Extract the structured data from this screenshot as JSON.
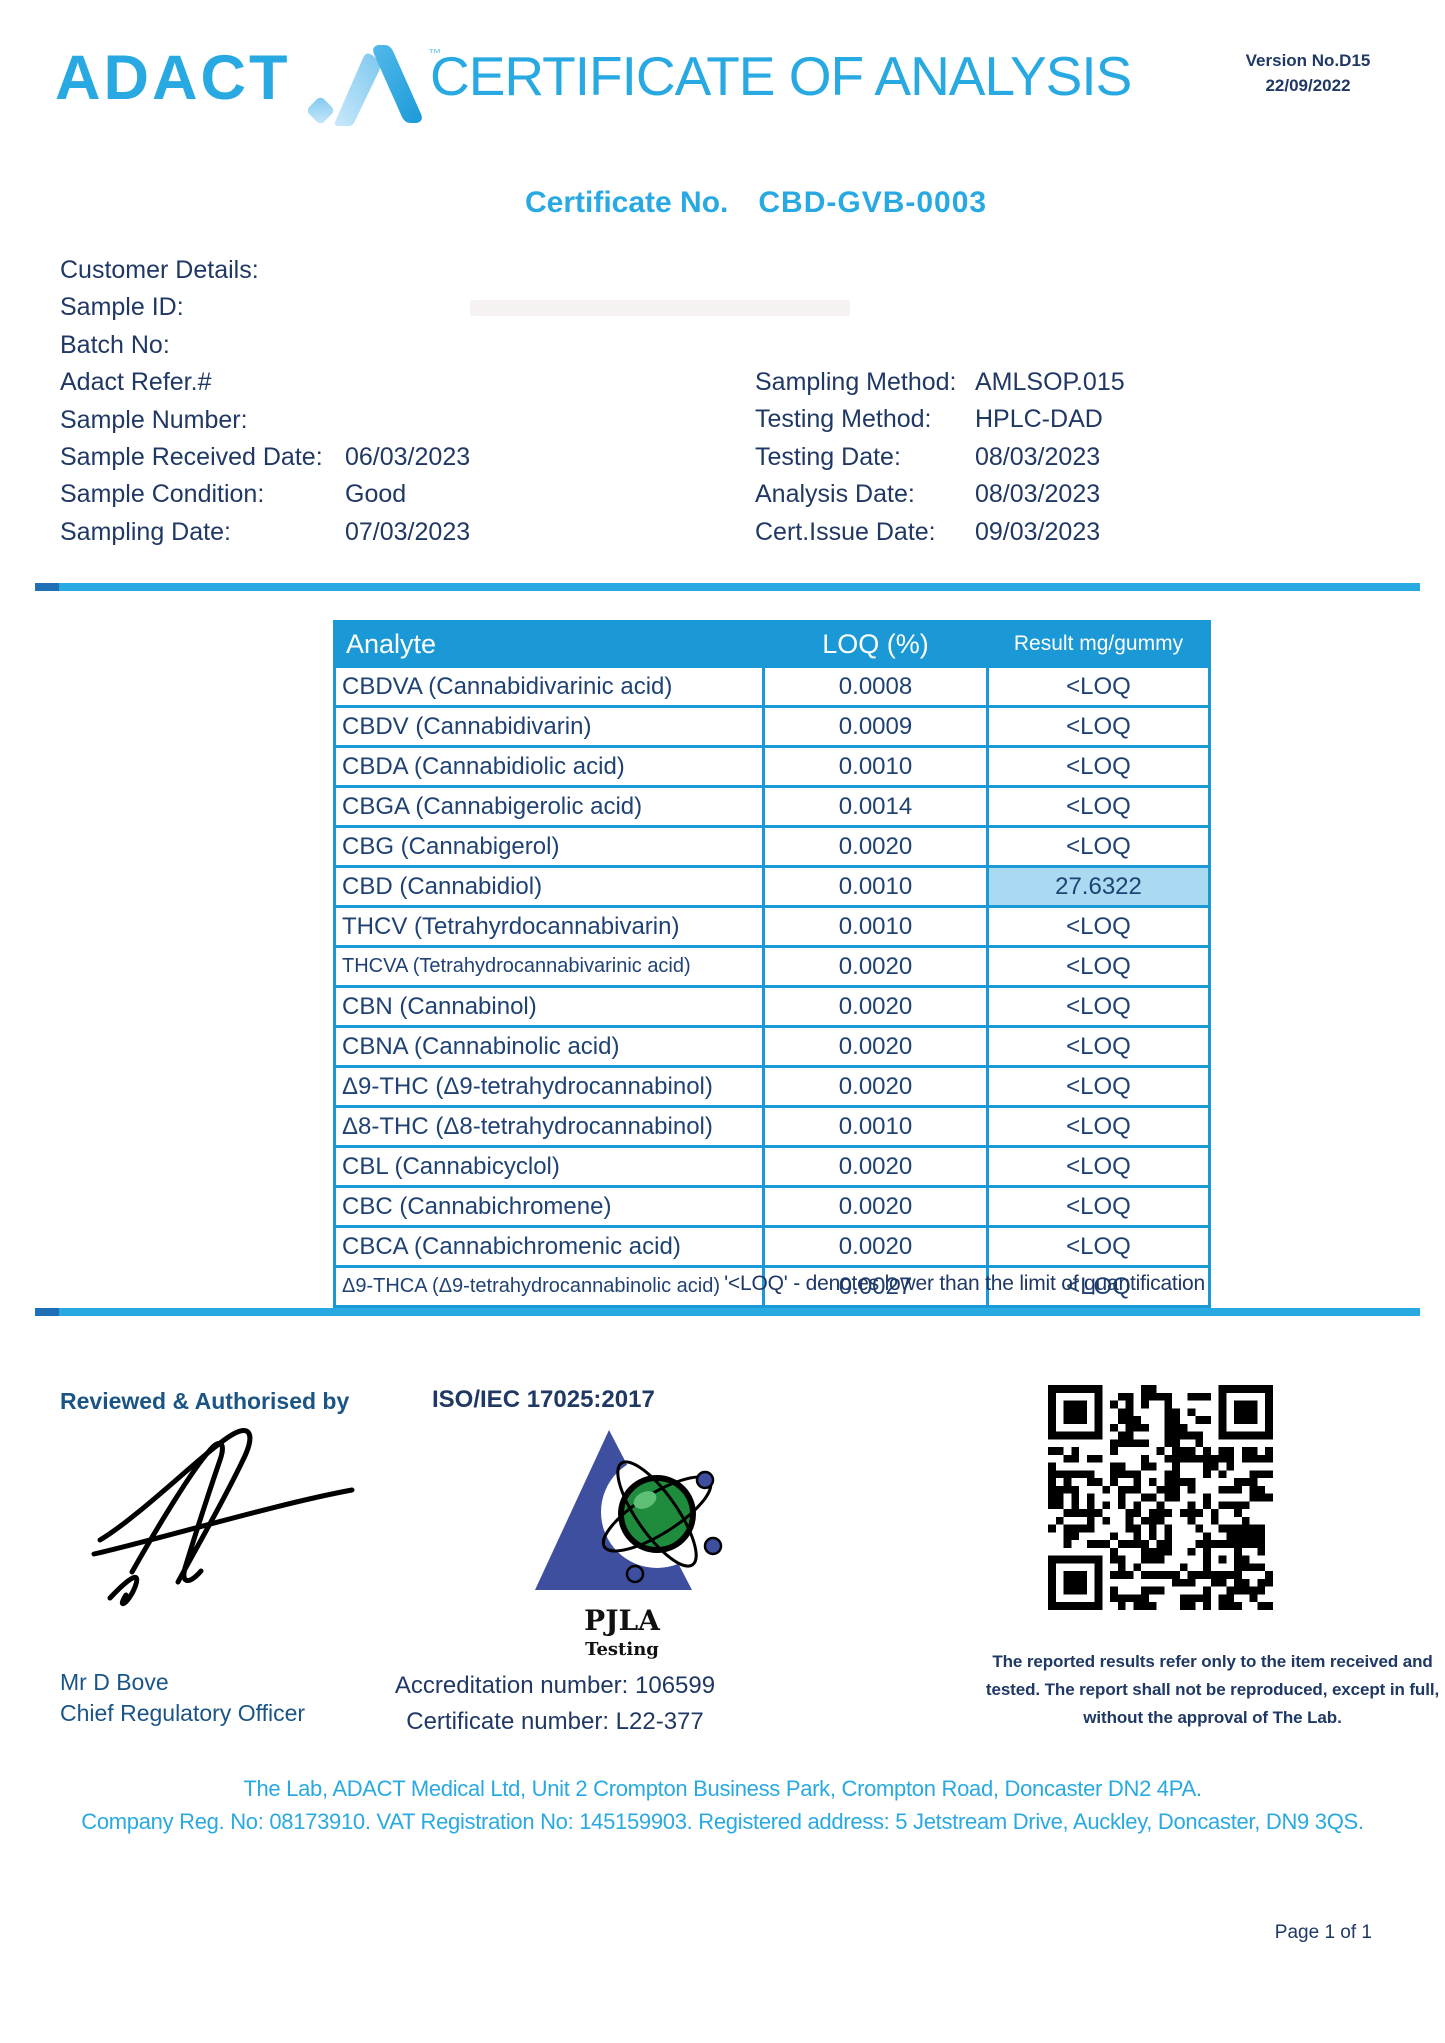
{
  "header": {
    "logo_text": "ADACT",
    "tm": "™",
    "title": "CERTIFICATE OF ANALYSIS",
    "version_line1": "Version No.D15",
    "version_line2": "22/09/2022"
  },
  "certificate": {
    "label": "Certificate No.",
    "number": "CBD-GVB-0003"
  },
  "details": {
    "left": [
      {
        "label": "Customer Details:",
        "value": ""
      },
      {
        "label": "Sample ID:",
        "value": ""
      },
      {
        "label": "Batch No:",
        "value": ""
      },
      {
        "label": "Adact Refer.#",
        "value": ""
      },
      {
        "label": "Sample Number:",
        "value": ""
      },
      {
        "label": "Sample Received Date:",
        "value": "06/03/2023"
      },
      {
        "label": "Sample Condition:",
        "value": "Good"
      },
      {
        "label": "Sampling Date:",
        "value": "07/03/2023"
      }
    ],
    "right": [
      {
        "label": "Sampling Method:",
        "value": "AMLSOP.015"
      },
      {
        "label": "Testing Method:",
        "value": "HPLC-DAD"
      },
      {
        "label": "Testing Date:",
        "value": "08/03/2023"
      },
      {
        "label": "Analysis Date:",
        "value": "08/03/2023"
      },
      {
        "label": "Cert.Issue Date:",
        "value": "09/03/2023"
      }
    ]
  },
  "table": {
    "headers": [
      "Analyte",
      "LOQ (%)",
      "Result mg/gummy"
    ],
    "rows": [
      {
        "analyte": "CBDVA (Cannabidivarinic acid)",
        "loq": "0.0008",
        "result": "<LOQ",
        "highlight": false
      },
      {
        "analyte": "CBDV (Cannabidivarin)",
        "loq": "0.0009",
        "result": "<LOQ",
        "highlight": false
      },
      {
        "analyte": "CBDA (Cannabidiolic acid)",
        "loq": "0.0010",
        "result": "<LOQ",
        "highlight": false
      },
      {
        "analyte": "CBGA (Cannabigerolic acid)",
        "loq": "0.0014",
        "result": "<LOQ",
        "highlight": false
      },
      {
        "analyte": "CBG (Cannabigerol)",
        "loq": "0.0020",
        "result": "<LOQ",
        "highlight": false
      },
      {
        "analyte": "CBD (Cannabidiol)",
        "loq": "0.0010",
        "result": "27.6322",
        "highlight": true
      },
      {
        "analyte": "THCV (Tetrahyrdocannabivarin)",
        "loq": "0.0010",
        "result": "<LOQ",
        "highlight": false
      },
      {
        "analyte": "THCVA (Tetrahydrocannabivarinic acid)",
        "loq": "0.0020",
        "result": "<LOQ",
        "highlight": false
      },
      {
        "analyte": "CBN (Cannabinol)",
        "loq": "0.0020",
        "result": "<LOQ",
        "highlight": false
      },
      {
        "analyte": "CBNA (Cannabinolic acid)",
        "loq": "0.0020",
        "result": "<LOQ",
        "highlight": false
      },
      {
        "analyte": "Δ9-THC (Δ9-tetrahydrocannabinol)",
        "loq": "0.0020",
        "result": "<LOQ",
        "highlight": false
      },
      {
        "analyte": "Δ8-THC (Δ8-tetrahydrocannabinol)",
        "loq": "0.0010",
        "result": "<LOQ",
        "highlight": false
      },
      {
        "analyte": "CBL (Cannabicyclol)",
        "loq": "0.0020",
        "result": "<LOQ",
        "highlight": false
      },
      {
        "analyte": "CBC (Cannabichromene)",
        "loq": "0.0020",
        "result": "<LOQ",
        "highlight": false
      },
      {
        "analyte": "CBCA (Cannabichromenic acid)",
        "loq": "0.0020",
        "result": "<LOQ",
        "highlight": false
      },
      {
        "analyte": "Δ9-THCA (Δ9-tetrahydrocannabinolic acid)",
        "loq": "0.0027",
        "result": "<LOQ",
        "highlight": false
      }
    ]
  },
  "note": "'<LOQ' - denotes lower than the limit of quantification",
  "footer": {
    "reviewed_label": "Reviewed & Authorised by",
    "iso_label": "ISO/IEC 17025:2017",
    "pjla_name": "PJLA",
    "pjla_sub": "Testing",
    "signer_name": "Mr D Bove",
    "signer_title": "Chief Regulatory Officer",
    "accreditation": "Accreditation number: 106599",
    "certificate_number": "Certificate number: L22-377",
    "disclaimer": "The reported results refer only to the item received and tested. The report shall not be reproduced, except in full, without the approval of The Lab.",
    "address_line1": "The Lab, ADACT Medical Ltd, Unit 2 Crompton Business Park, Crompton Road, Doncaster DN2 4PA.",
    "address_line2": "Company Reg. No: 08173910. VAT Registration No: 145159903. Registered address: 5 Jetstream Drive, Auckley, Doncaster, DN9 3QS.",
    "page": "Page 1 of 1"
  },
  "colors": {
    "accent": "#29a9e1",
    "table_header": "#1a99d6",
    "navy": "#203864",
    "steel_blue": "#1a5586",
    "highlight": "#aadaf2",
    "pjla_blue": "#3e4fa0",
    "pjla_green": "#1e8c3c"
  }
}
